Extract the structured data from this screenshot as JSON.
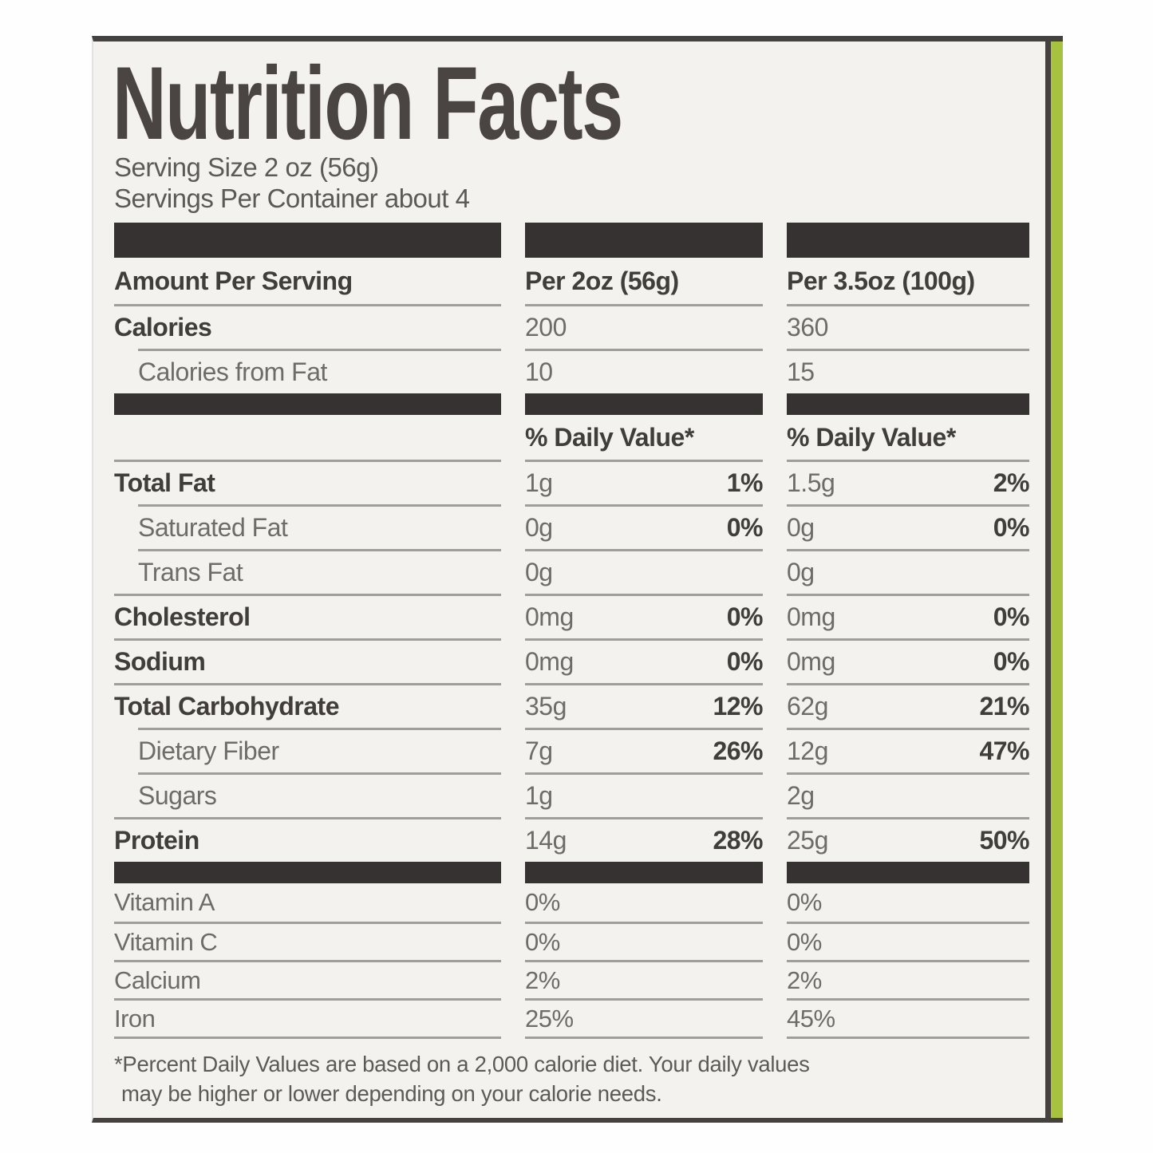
{
  "label": {
    "title": "Nutrition Facts",
    "serving_size": "Serving Size 2 oz (56g)",
    "servings_per_container": "Servings Per Container about 4",
    "rows": [
      {
        "type": "bar",
        "size": "tall"
      },
      {
        "type": "cols-header",
        "c1": "Amount Per Serving",
        "c2": "Per 2oz (56g)",
        "c3": "Per 3.5oz (100g)"
      },
      {
        "type": "nutrient",
        "label": "Calories",
        "bold": true,
        "line": true,
        "c2": {
          "amount": "200"
        },
        "c3": {
          "amount": "360"
        }
      },
      {
        "type": "nutrient",
        "label": "Calories from Fat",
        "indent": true,
        "line": true,
        "c2": {
          "amount": "10"
        },
        "c3": {
          "amount": "15"
        }
      },
      {
        "type": "bar",
        "size": "thin"
      },
      {
        "type": "dv-header",
        "c2": "% Daily Value*",
        "c3": "% Daily Value*"
      },
      {
        "type": "nutrient",
        "label": "Total Fat",
        "bold": true,
        "line": true,
        "c2": {
          "amount": "1g",
          "dv": "1%"
        },
        "c3": {
          "amount": "1.5g",
          "dv": "2%"
        }
      },
      {
        "type": "nutrient",
        "label": "Saturated Fat",
        "indent": true,
        "line": true,
        "c2": {
          "amount": "0g",
          "dv": "0%"
        },
        "c3": {
          "amount": "0g",
          "dv": "0%"
        }
      },
      {
        "type": "nutrient",
        "label": "Trans Fat",
        "indent": true,
        "line": true,
        "c2": {
          "amount": "0g"
        },
        "c3": {
          "amount": "0g"
        }
      },
      {
        "type": "nutrient",
        "label": "Cholesterol",
        "bold": true,
        "line": true,
        "c2": {
          "amount": "0mg",
          "dv": "0%"
        },
        "c3": {
          "amount": "0mg",
          "dv": "0%"
        }
      },
      {
        "type": "nutrient",
        "label": "Sodium",
        "bold": true,
        "line": true,
        "c2": {
          "amount": "0mg",
          "dv": "0%"
        },
        "c3": {
          "amount": "0mg",
          "dv": "0%"
        }
      },
      {
        "type": "nutrient",
        "label": "Total Carbohydrate",
        "bold": true,
        "line": true,
        "c2": {
          "amount": "35g",
          "dv": "12%"
        },
        "c3": {
          "amount": "62g",
          "dv": "21%"
        }
      },
      {
        "type": "nutrient",
        "label": "Dietary Fiber",
        "indent": true,
        "line": true,
        "c2": {
          "amount": "7g",
          "dv": "26%"
        },
        "c3": {
          "amount": "12g",
          "dv": "47%"
        }
      },
      {
        "type": "nutrient",
        "label": "Sugars",
        "indent": true,
        "line": true,
        "c2": {
          "amount": "1g"
        },
        "c3": {
          "amount": "2g"
        }
      },
      {
        "type": "nutrient",
        "label": "Protein",
        "bold": true,
        "line": true,
        "c2": {
          "amount": "14g",
          "dv": "28%"
        },
        "c3": {
          "amount": "25g",
          "dv": "50%"
        }
      },
      {
        "type": "bar",
        "size": "thin"
      },
      {
        "type": "nutrient",
        "label": "Vitamin A",
        "small": true,
        "line": false,
        "c2": {
          "amount": "0%"
        },
        "c3": {
          "amount": "0%"
        }
      },
      {
        "type": "nutrient",
        "label": "Vitamin C",
        "small": true,
        "line": true,
        "c2": {
          "amount": "0%"
        },
        "c3": {
          "amount": "0%"
        }
      },
      {
        "type": "nutrient",
        "label": "Calcium",
        "small": true,
        "line": true,
        "c2": {
          "amount": "2%"
        },
        "c3": {
          "amount": "2%"
        }
      },
      {
        "type": "nutrient",
        "label": "Iron",
        "small": true,
        "line": true,
        "c2": {
          "amount": "25%"
        },
        "c3": {
          "amount": "45%"
        }
      },
      {
        "type": "closing-line"
      }
    ],
    "footnote_lines": [
      "*Percent Daily Values are based on a 2,000 calorie diet. Your daily values",
      "may be higher or lower depending on your calorie needs."
    ],
    "colors": {
      "page_background": "#ffffff",
      "label_background": "#f3f2ef",
      "separator_bar": "#363231",
      "bold_text": "#403d3a",
      "body_text": "#6f6c68",
      "rule_line": "#a09e9a",
      "border": "#45413e",
      "edge_green": "#a6c23f"
    }
  }
}
